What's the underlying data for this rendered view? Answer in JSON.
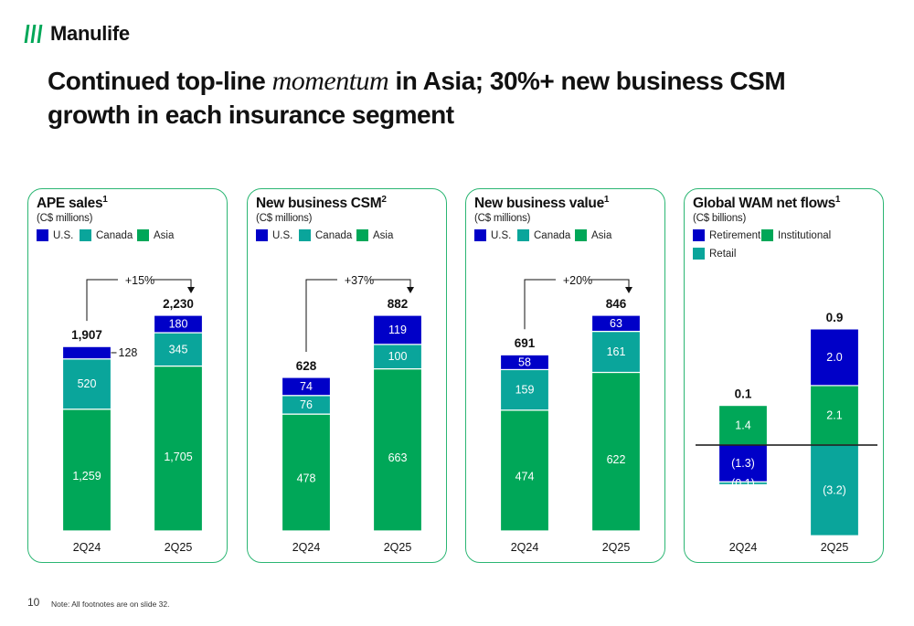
{
  "brand": {
    "name": "Manulife"
  },
  "colors": {
    "us": "#0000c8",
    "canada": "#0aa59b",
    "asia": "#00a758",
    "border": "#2bb673"
  },
  "title": {
    "part1": "Continued top-line ",
    "emphasis": "momentum",
    "part2": " in Asia; 30%+ new business CSM growth in each insurance segment"
  },
  "page_number": "10",
  "footnote": "Note: All footnotes are on slide 32.",
  "chart_data": [
    {
      "type": "bar",
      "title": "APE sales",
      "title_sup": "1",
      "unit": "(C$ millions)",
      "legend": [
        "U.S.",
        "Canada",
        "Asia"
      ],
      "categories": [
        "2Q24",
        "2Q25"
      ],
      "series": [
        {
          "name": "Asia",
          "values": [
            1259,
            1705
          ],
          "labels": [
            "1,259",
            "1,705"
          ]
        },
        {
          "name": "Canada",
          "values": [
            520,
            345
          ],
          "labels": [
            "520",
            "345"
          ]
        },
        {
          "name": "U.S.",
          "values": [
            128,
            180
          ],
          "labels": [
            "128",
            "180"
          ]
        }
      ],
      "totals": [
        "1,907",
        "2,230"
      ],
      "growth": "+15%"
    },
    {
      "type": "bar",
      "title": "New business CSM",
      "title_sup": "2",
      "unit": "(C$ millions)",
      "legend": [
        "U.S.",
        "Canada",
        "Asia"
      ],
      "categories": [
        "2Q24",
        "2Q25"
      ],
      "series": [
        {
          "name": "Asia",
          "values": [
            478,
            663
          ],
          "labels": [
            "478",
            "663"
          ]
        },
        {
          "name": "Canada",
          "values": [
            76,
            100
          ],
          "labels": [
            "76",
            "100"
          ]
        },
        {
          "name": "U.S.",
          "values": [
            74,
            119
          ],
          "labels": [
            "74",
            "119"
          ]
        }
      ],
      "totals": [
        "628",
        "882"
      ],
      "growth": "+37%"
    },
    {
      "type": "bar",
      "title": "New business value",
      "title_sup": "1",
      "unit": "(C$ millions)",
      "legend": [
        "U.S.",
        "Canada",
        "Asia"
      ],
      "categories": [
        "2Q24",
        "2Q25"
      ],
      "series": [
        {
          "name": "Asia",
          "values": [
            474,
            622
          ],
          "labels": [
            "474",
            "622"
          ]
        },
        {
          "name": "Canada",
          "values": [
            159,
            161
          ],
          "labels": [
            "159",
            "161"
          ]
        },
        {
          "name": "U.S.",
          "values": [
            58,
            63
          ],
          "labels": [
            "58",
            "63"
          ]
        }
      ],
      "totals": [
        "691",
        "846"
      ],
      "growth": "+20%"
    },
    {
      "type": "bar",
      "title": "Global WAM net flows",
      "title_sup": "1",
      "unit": "(C$ billions)",
      "legend": [
        "Retirement",
        "Institutional",
        "Retail"
      ],
      "categories": [
        "2Q24",
        "2Q25"
      ],
      "series": [
        {
          "name": "Retirement",
          "values": [
            -1.3,
            2.0
          ],
          "labels": [
            "(1.3)",
            "2.0"
          ]
        },
        {
          "name": "Institutional",
          "values": [
            1.4,
            2.1
          ],
          "labels": [
            "1.4",
            "2.1"
          ]
        },
        {
          "name": "Retail",
          "values": [
            -0.1,
            -3.2
          ],
          "labels": [
            "(0.1)",
            "(3.2)"
          ]
        }
      ],
      "totals": [
        "0.1",
        "0.9"
      ]
    }
  ]
}
